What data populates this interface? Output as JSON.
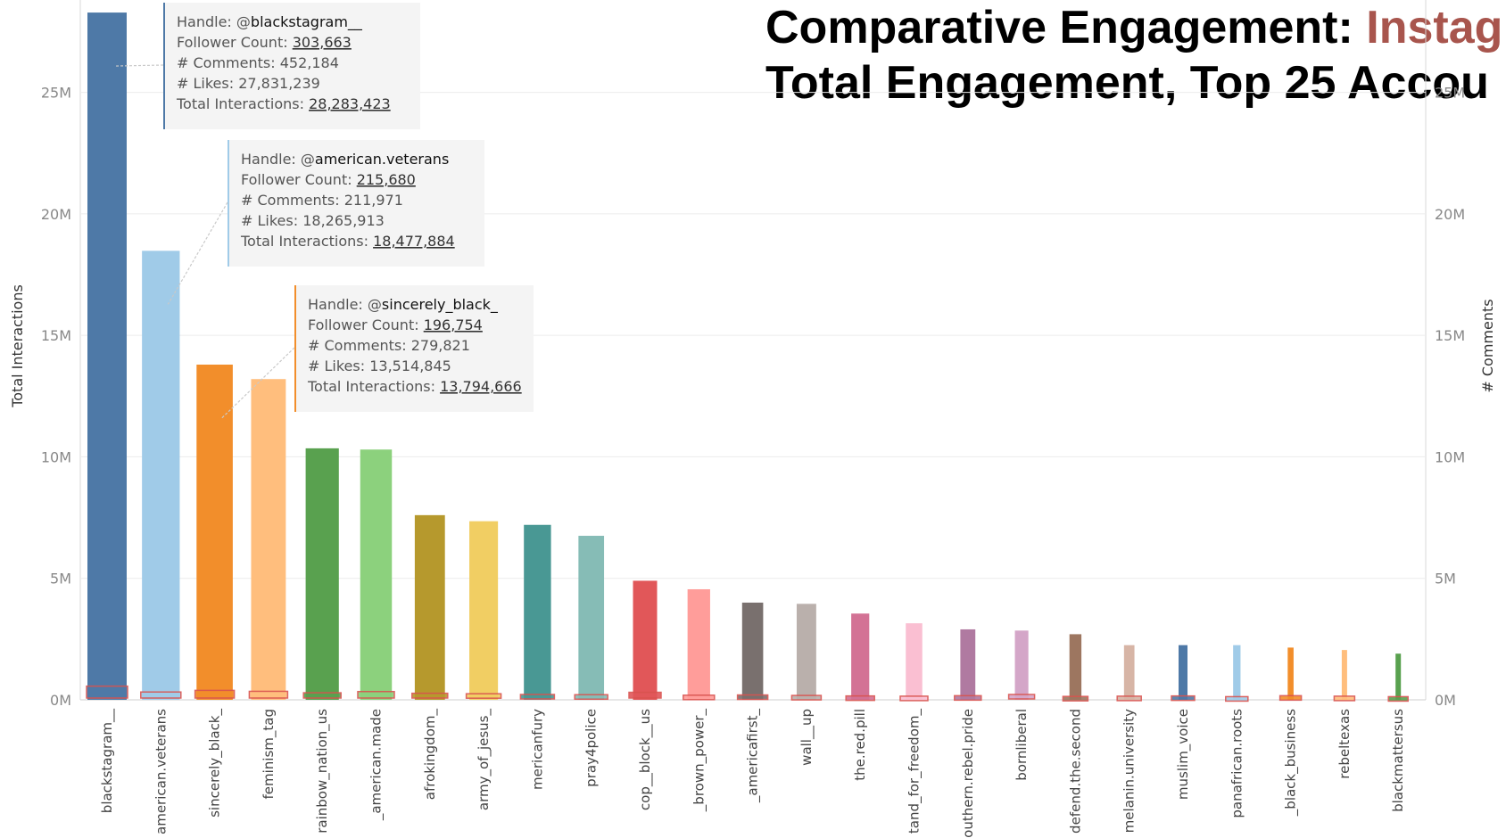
{
  "title": {
    "line1_prefix": "Comparative Engagement: ",
    "line1_accent": "Instag",
    "line2": "Total Engagement, Top 25 Accou"
  },
  "colors": {
    "title_accent": "#a8554d",
    "comments_marker": "#d9534f"
  },
  "chart_data": {
    "type": "bar",
    "ylabel": "Total Interactions",
    "y2label": "# Comments",
    "ylim": [
      0,
      28800000
    ],
    "ytick_values": [
      0,
      5000000,
      10000000,
      15000000,
      20000000,
      25000000
    ],
    "ytick_labels": [
      "0M",
      "5M",
      "10M",
      "15M",
      "20M",
      "25M"
    ],
    "y2tick_labels": [
      "0M",
      "5M",
      "10M",
      "15M",
      "20M",
      "25M"
    ],
    "grid": true,
    "categories": [
      "blackstagram__",
      "american.veterans",
      "sincerely_black_",
      "feminism_tag",
      "rainbow_nation_us",
      "_american.made",
      "afrokingdom_",
      "army_of_jesus_",
      "mericanfury",
      "pray4police",
      "cop__block__us",
      "_brown_power_",
      "_americafirst_",
      "wall__up",
      "the.red.pill",
      "tand_for_freedom_",
      "outhern.rebel.pride",
      "bornliberal",
      "defend.the.second",
      "melanin.university",
      "muslim_voice",
      "panafrican.roots",
      "_black_business",
      "rebeltexas",
      "blackmattersus"
    ],
    "values": [
      28283423,
      18477884,
      13794666,
      13200000,
      10350000,
      10300000,
      7600000,
      7350000,
      7200000,
      6750000,
      4900000,
      4550000,
      4000000,
      3950000,
      3550000,
      3150000,
      2900000,
      2850000,
      2700000,
      2250000,
      2250000,
      2250000,
      2150000,
      2050000,
      1900000
    ],
    "bar_colors": [
      "#4e79a7",
      "#a0cbe8",
      "#f28e2b",
      "#ffbe7d",
      "#59a14f",
      "#8cd17d",
      "#b6992d",
      "#f1ce63",
      "#499894",
      "#86bcb6",
      "#e15759",
      "#ff9d9a",
      "#79706e",
      "#bab0ac",
      "#d37295",
      "#fabfd2",
      "#b07aa1",
      "#d4a6c8",
      "#9d7660",
      "#d7b5a6",
      "#4e79a7",
      "#a0cbe8",
      "#f28e2b",
      "#ffbe7d",
      "#59a14f"
    ],
    "comments_values": [
      452184,
      211971,
      279821,
      240000,
      180000,
      230000,
      160000,
      140000,
      110000,
      100000,
      200000,
      80000,
      90000,
      70000,
      50000,
      40000,
      60000,
      110000,
      30000,
      40000,
      50000,
      20000,
      60000,
      40000,
      20000
    ],
    "tooltips": [
      {
        "bar_index": 0,
        "handle_label": "Handle: @",
        "handle": "blackstagram__",
        "followers_label": "Follower Count: ",
        "followers": "303,663",
        "comments_label": "# Comments: ",
        "comments": "452,184",
        "likes_label": "# Likes: ",
        "likes": "27,831,239",
        "total_label": "Total Interactions: ",
        "total": "28,283,423",
        "accent": "#4e79a7"
      },
      {
        "bar_index": 1,
        "handle_label": "Handle: @",
        "handle": "american.veterans",
        "followers_label": "Follower Count: ",
        "followers": "215,680",
        "comments_label": "# Comments: ",
        "comments": "211,971",
        "likes_label": "# Likes: ",
        "likes": "18,265,913",
        "total_label": "Total Interactions: ",
        "total": "18,477,884",
        "accent": "#a0cbe8"
      },
      {
        "bar_index": 2,
        "handle_label": "Handle: @",
        "handle": "sincerely_black_",
        "followers_label": "Follower Count: ",
        "followers": "196,754",
        "comments_label": "# Comments: ",
        "comments": "279,821",
        "likes_label": "# Likes: ",
        "likes": "13,514,845",
        "total_label": "Total Interactions: ",
        "total": "13,794,666",
        "accent": "#f28e2b"
      }
    ]
  }
}
